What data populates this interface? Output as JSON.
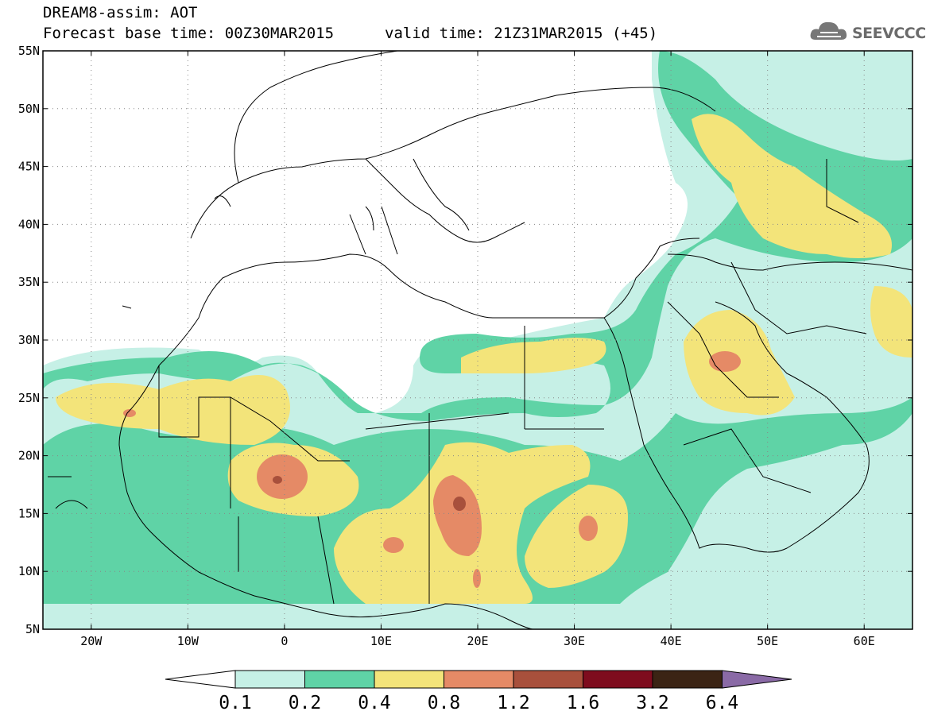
{
  "header": {
    "title": "DREAM8-assim: AOT",
    "base_time": "Forecast base time: 00Z30MAR2015",
    "valid_time": "valid time: 21Z31MAR2015 (+45)"
  },
  "logo": {
    "text": "SEEVCCC",
    "icon": "cloud-icon",
    "color": "#6b6b6b"
  },
  "axes": {
    "lon_ticks": [
      {
        "value": -20,
        "label": "20W"
      },
      {
        "value": -10,
        "label": "10W"
      },
      {
        "value": 0,
        "label": "0"
      },
      {
        "value": 10,
        "label": "10E"
      },
      {
        "value": 20,
        "label": "20E"
      },
      {
        "value": 30,
        "label": "30E"
      },
      {
        "value": 40,
        "label": "40E"
      },
      {
        "value": 50,
        "label": "50E"
      },
      {
        "value": 60,
        "label": "60E"
      }
    ],
    "lat_ticks": [
      {
        "value": 55,
        "label": "55N"
      },
      {
        "value": 50,
        "label": "50N"
      },
      {
        "value": 45,
        "label": "45N"
      },
      {
        "value": 40,
        "label": "40N"
      },
      {
        "value": 35,
        "label": "35N"
      },
      {
        "value": 30,
        "label": "30N"
      },
      {
        "value": 25,
        "label": "25N"
      },
      {
        "value": 20,
        "label": "20N"
      },
      {
        "value": 15,
        "label": "15N"
      },
      {
        "value": 10,
        "label": "10N"
      },
      {
        "value": 5,
        "label": "5N"
      }
    ],
    "lon_range": [
      -25,
      65
    ],
    "lat_range": [
      5,
      55
    ],
    "grid": "dotted"
  },
  "colorbar": {
    "levels": [
      "0.1",
      "0.2",
      "0.4",
      "0.8",
      "1.2",
      "1.6",
      "3.2",
      "6.4"
    ],
    "colors": [
      "#ffffff",
      "#c6f0e6",
      "#5fd3a6",
      "#f3e47a",
      "#e58a66",
      "#a8503c",
      "#7e0c1e",
      "#3b2414",
      "#8a6aa6"
    ]
  }
}
